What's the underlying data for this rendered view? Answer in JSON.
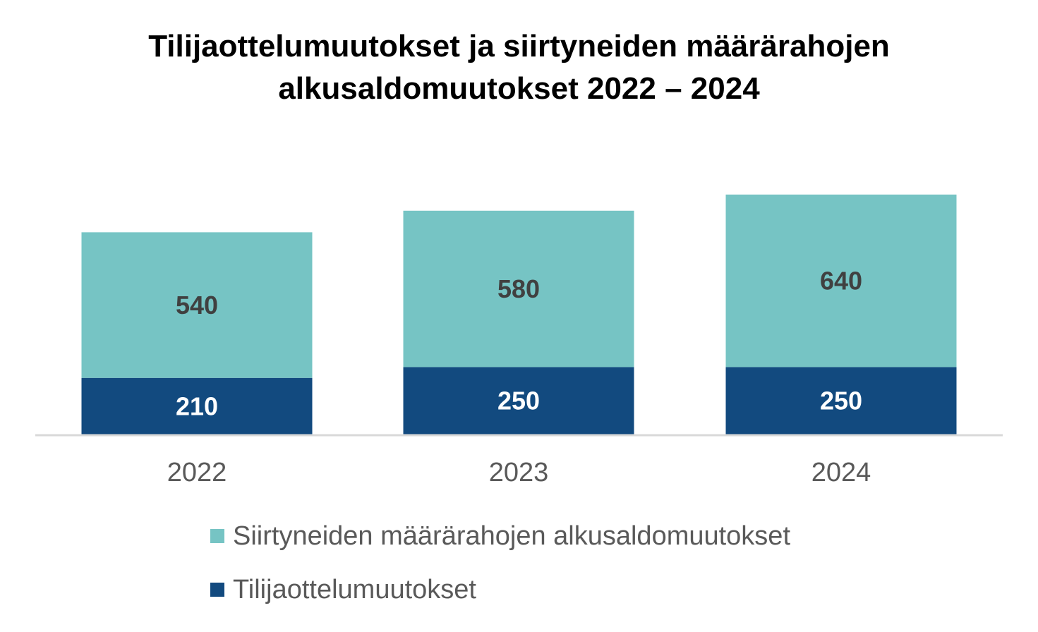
{
  "chart_data": {
    "type": "bar",
    "stacked": true,
    "title": "Tilijaottelumuutokset ja siirtyneiden määrärahojen alkusaldomuutokset 2022 – 2024",
    "title_lines": [
      "Tilijaottelumuutokset ja siirtyneiden määrärahojen",
      "alkusaldomuutokset 2022 – 2024"
    ],
    "categories": [
      "2022",
      "2023",
      "2024"
    ],
    "series": [
      {
        "name": "Tilijaottelumuutokset",
        "values": [
          210,
          250,
          250
        ],
        "color": "#124a7f",
        "label_color": "#ffffff"
      },
      {
        "name": "Siirtyneiden määrärahojen alkusaldomuutokset",
        "values": [
          540,
          580,
          640
        ],
        "color": "#76c4c4",
        "label_color": "#404040"
      }
    ],
    "legend_order": [
      1,
      0
    ],
    "ylim": [
      0,
      900
    ],
    "grid": false,
    "legend_position": "bottom",
    "xlabel": "",
    "ylabel": ""
  }
}
